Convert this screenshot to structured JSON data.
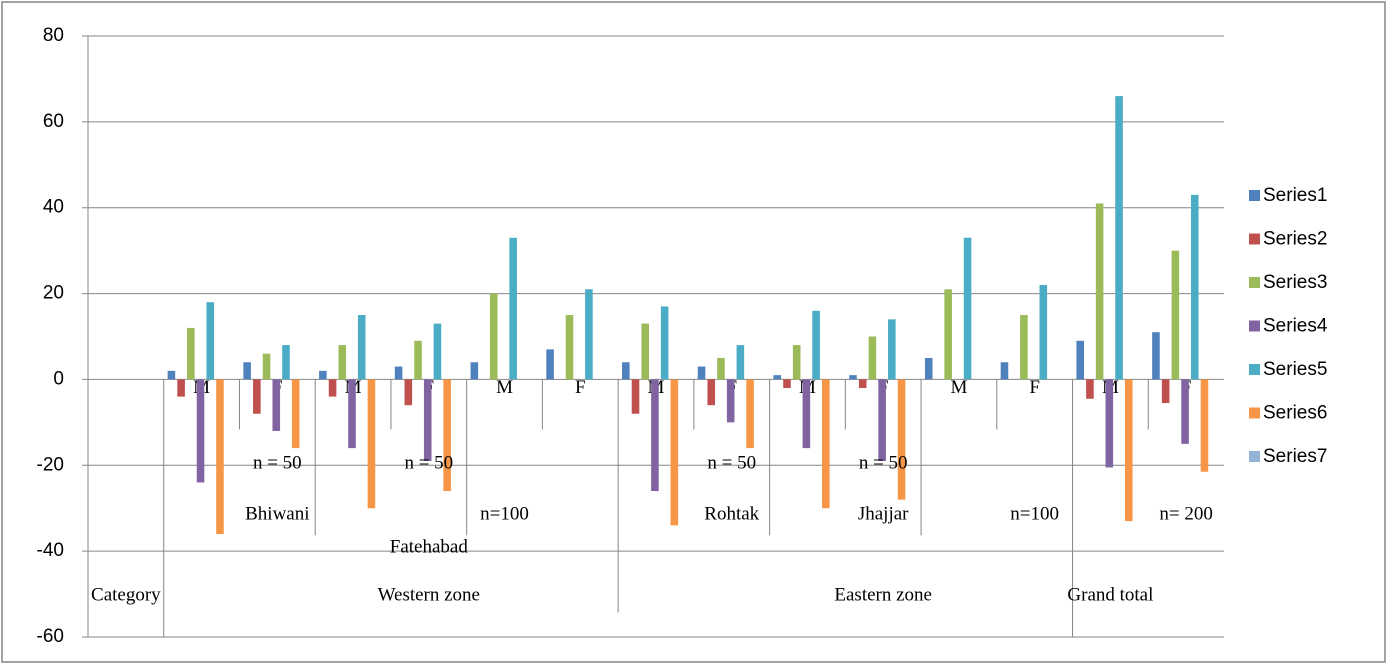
{
  "chart_data": {
    "type": "bar",
    "categories": [
      null,
      "M",
      "F",
      "M",
      "F",
      "M",
      "F",
      "M",
      "F",
      "M",
      "F",
      "M",
      "F",
      "M",
      "F"
    ],
    "category_levels": [
      [
        null,
        null,
        "n = 50",
        null,
        "n = 50",
        null,
        null,
        null,
        "n = 50",
        null,
        "n = 50",
        null,
        null,
        null,
        null
      ],
      [
        null,
        null,
        "Bhiwani",
        null,
        null,
        "n=100",
        null,
        null,
        "Rohtak",
        null,
        "Jhajjar",
        null,
        "n=100",
        null,
        "n= 200"
      ],
      [
        null,
        null,
        null,
        null,
        "Fatehabad",
        null,
        null,
        null,
        null,
        null,
        null,
        null,
        null,
        null,
        null
      ],
      [
        "Category",
        null,
        null,
        null,
        "Western zone",
        null,
        null,
        null,
        null,
        null,
        "Eastern zone",
        null,
        null,
        "Grand  total",
        null
      ]
    ],
    "series": [
      {
        "name": "Series1",
        "color": "#4f81bd",
        "values": [
          null,
          2,
          4,
          2,
          3,
          4,
          7,
          4,
          3,
          1,
          1,
          5,
          4,
          9,
          11
        ]
      },
      {
        "name": "Series2",
        "color": "#c0504d",
        "values": [
          null,
          -4,
          -8,
          -4,
          -6,
          null,
          null,
          -8,
          -6,
          -2,
          -2,
          null,
          null,
          -4.5,
          -5.5
        ]
      },
      {
        "name": "Series3",
        "color": "#9bbb59",
        "values": [
          null,
          12,
          6,
          8,
          9,
          20,
          15,
          13,
          5,
          8,
          10,
          21,
          15,
          41,
          30
        ]
      },
      {
        "name": "Series4",
        "color": "#8064a2",
        "values": [
          null,
          -24,
          -12,
          -16,
          -19,
          null,
          null,
          -26,
          -10,
          -16,
          -19,
          null,
          null,
          -20.5,
          -15
        ]
      },
      {
        "name": "Series5",
        "color": "#4bacc6",
        "values": [
          null,
          18,
          8,
          15,
          13,
          33,
          21,
          17,
          8,
          16,
          14,
          33,
          22,
          66,
          43
        ]
      },
      {
        "name": "Series6",
        "color": "#f79646",
        "values": [
          null,
          -36,
          -16,
          -30,
          -26,
          null,
          null,
          -34,
          -16,
          -30,
          -28,
          null,
          null,
          -33,
          -21.5
        ]
      },
      {
        "name": "Series7",
        "color": "#95b3d7",
        "values": [
          null,
          null,
          null,
          null,
          null,
          null,
          null,
          null,
          null,
          null,
          null,
          null,
          null,
          null,
          null
        ]
      }
    ],
    "ylim": [
      -60,
      80
    ],
    "yticks": [
      -60,
      -40,
      -20,
      0,
      20,
      40,
      60,
      80
    ],
    "grid": true,
    "legend": "right"
  }
}
